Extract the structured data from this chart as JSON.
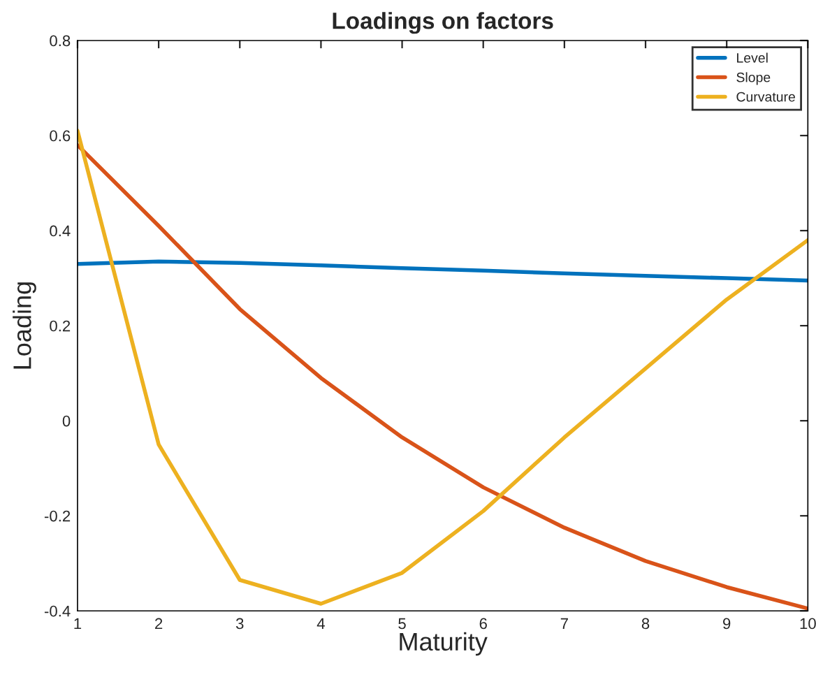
{
  "chart_data": {
    "type": "line",
    "title": "Loadings on factors",
    "xlabel": "Maturity",
    "ylabel": "Loading",
    "x": [
      1,
      2,
      3,
      4,
      5,
      6,
      7,
      8,
      9,
      10
    ],
    "series": [
      {
        "name": "Level",
        "color": "#0072bd",
        "values": [
          0.33,
          0.335,
          0.332,
          0.327,
          0.321,
          0.316,
          0.31,
          0.305,
          0.3,
          0.295
        ]
      },
      {
        "name": "Slope",
        "color": "#d95319",
        "values": [
          0.58,
          0.41,
          0.235,
          0.09,
          -0.035,
          -0.14,
          -0.225,
          -0.295,
          -0.35,
          -0.395
        ]
      },
      {
        "name": "Curvature",
        "color": "#edb120",
        "values": [
          0.61,
          -0.05,
          -0.335,
          -0.385,
          -0.32,
          -0.19,
          -0.035,
          0.11,
          0.255,
          0.38
        ]
      }
    ],
    "xlim": [
      1,
      10
    ],
    "ylim": [
      -0.4,
      0.8
    ],
    "xticks": [
      1,
      2,
      3,
      4,
      5,
      6,
      7,
      8,
      9,
      10
    ],
    "yticks": [
      {
        "value": -0.4,
        "label": "-0.4"
      },
      {
        "value": -0.2,
        "label": "-0.2"
      },
      0,
      0.2,
      0.4,
      0.6,
      0.8
    ],
    "grid": false,
    "legend": "top right",
    "line_style": "solid",
    "marker": "none"
  }
}
